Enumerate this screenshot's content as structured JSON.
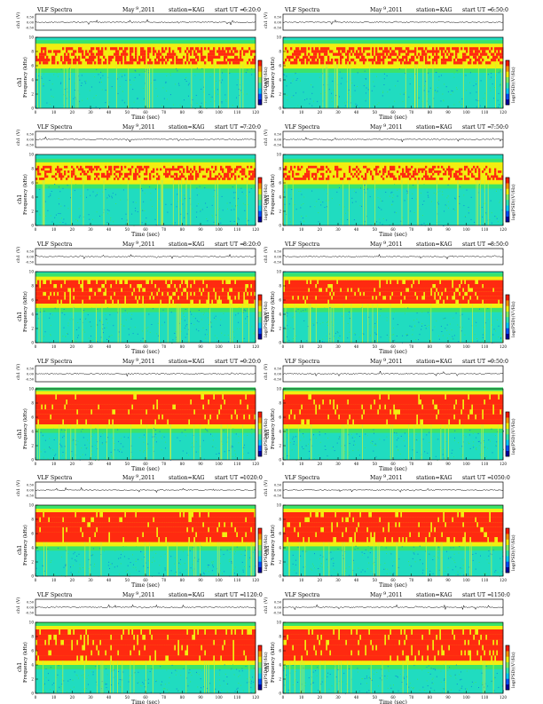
{
  "document": {
    "title": "VLF Spectra station KAG, May 2011"
  },
  "panel_labels": {
    "title_left": "VLF Spectra",
    "date": "May 2011",
    "date_month": "May",
    "date_day": "9",
    "date_year": ",2011",
    "station": "station=KAG",
    "start_prefix": "start  UT =",
    "ylabel_ch": "ch1 (V)",
    "ylabel_freq_line1": "ch1",
    "ylabel_freq_line2": "Frequency  (kHz)",
    "xlabel": "Time  (sec)",
    "colorbar_label": "log(PSD)(V²/Hz)"
  },
  "panels": [
    {
      "start_ut": "6:20:0"
    },
    {
      "start_ut": "6:50:0"
    },
    {
      "start_ut": "7:20:0"
    },
    {
      "start_ut": "7:50:0"
    },
    {
      "start_ut": "8:20:0"
    },
    {
      "start_ut": "8:50:0"
    },
    {
      "start_ut": "9:20:0"
    },
    {
      "start_ut": "9:50:0"
    },
    {
      "start_ut": "1020:0"
    },
    {
      "start_ut": "1050:0"
    },
    {
      "start_ut": "1120:0"
    },
    {
      "start_ut": "1150:0"
    }
  ],
  "chart_data": {
    "type": "heatmap",
    "x": {
      "label": "Time  (sec)",
      "range": [
        0,
        120
      ],
      "ticks": [
        0,
        10,
        20,
        30,
        40,
        50,
        60,
        70,
        80,
        90,
        100,
        110,
        120
      ]
    },
    "y": {
      "label": "Frequency  (kHz)",
      "range": [
        0,
        10
      ],
      "ticks": [
        0,
        2,
        4,
        6,
        8,
        10
      ]
    },
    "waveform": {
      "label": "ch1 (V)",
      "ticks": [
        "0.50",
        "0.00",
        "-0.50"
      ]
    },
    "colorbar": {
      "label": "log(PSD)(V²/Hz)",
      "colors": [
        "#0000a0",
        "#0050ff",
        "#00c8ff",
        "#30e8b0",
        "#80f060",
        "#f0f000",
        "#ff9000",
        "#ff1a00"
      ]
    },
    "spectrogram_palette": {
      "bg": "#20dcc0",
      "band_low": "#3be36a",
      "band_mid": "#9be02e",
      "yellow": "#f2ee10",
      "red": "#ff2a10",
      "streak": "#c8f040"
    },
    "panels": [
      {
        "start_ut": "6:20:0",
        "red_band_khz": [
          6.2,
          8.6
        ],
        "intensity": 0.55
      },
      {
        "start_ut": "6:50:0",
        "red_band_khz": [
          6.2,
          8.6
        ],
        "intensity": 0.55
      },
      {
        "start_ut": "7:20:0",
        "red_band_khz": [
          6.4,
          8.4
        ],
        "intensity": 0.45
      },
      {
        "start_ut": "7:50:0",
        "red_band_khz": [
          6.4,
          8.4
        ],
        "intensity": 0.4
      },
      {
        "start_ut": "8:20:0",
        "red_band_khz": [
          5.5,
          8.8
        ],
        "intensity": 0.8
      },
      {
        "start_ut": "8:50:0",
        "red_band_khz": [
          5.5,
          8.8
        ],
        "intensity": 0.85
      },
      {
        "start_ut": "9:20:0",
        "red_band_khz": [
          5.0,
          9.2
        ],
        "intensity": 0.9
      },
      {
        "start_ut": "9:50:0",
        "red_band_khz": [
          5.0,
          9.2
        ],
        "intensity": 0.9
      },
      {
        "start_ut": "1020:0",
        "red_band_khz": [
          4.8,
          9.0
        ],
        "intensity": 0.9
      },
      {
        "start_ut": "1050:0",
        "red_band_khz": [
          4.8,
          9.0
        ],
        "intensity": 0.88
      },
      {
        "start_ut": "1120:0",
        "red_band_khz": [
          4.6,
          9.0
        ],
        "intensity": 0.85
      },
      {
        "start_ut": "1150:0",
        "red_band_khz": [
          4.6,
          9.0
        ],
        "intensity": 0.85
      }
    ]
  }
}
